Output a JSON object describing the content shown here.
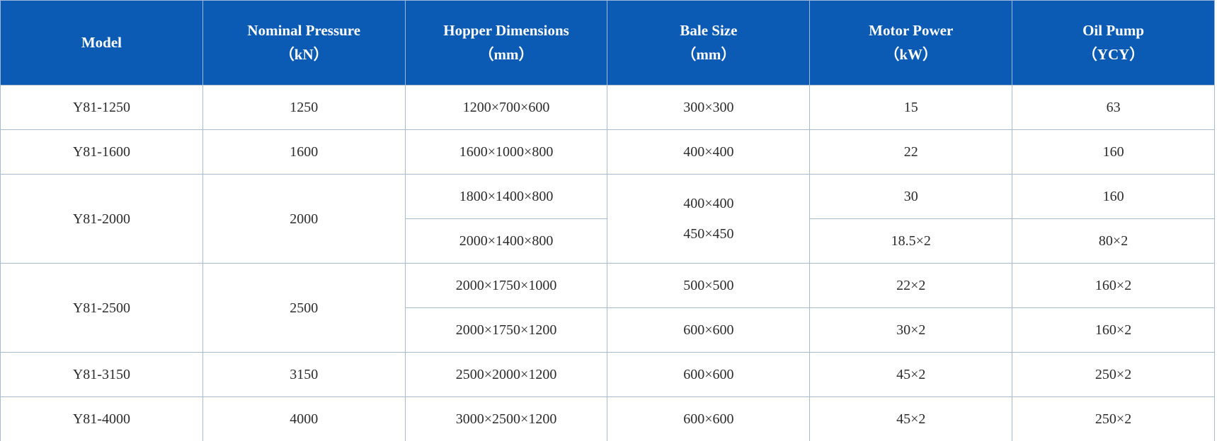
{
  "colors": {
    "header_bg": "#0b5ab3",
    "header_text": "#ffffff",
    "body_text": "#2b2b2b",
    "grid_border": "#a9bccd",
    "header_grid": "#9db8d8",
    "outer_border": "#b5cade"
  },
  "table": {
    "headers": [
      {
        "label": "Model",
        "unit": ""
      },
      {
        "label": "Nominal Pressure",
        "unit": "（kN）"
      },
      {
        "label": "Hopper Dimensions",
        "unit": "（mm）"
      },
      {
        "label": "Bale Size",
        "unit": "（mm）"
      },
      {
        "label": "Motor Power",
        "unit": "（kW）"
      },
      {
        "label": "Oil Pump",
        "unit": "（YCY）"
      }
    ],
    "rows": [
      {
        "model": "Y81-1250",
        "pressure": "1250",
        "hopper": "1200×700×600",
        "bale": "300×300",
        "motor": "15",
        "pump": "63"
      },
      {
        "model": "Y81-1600",
        "pressure": "1600",
        "hopper": "1600×1000×800",
        "bale": "400×400",
        "motor": "22",
        "pump": "160"
      },
      {
        "model": "Y81-2000",
        "pressure": "2000",
        "hopper": "1800×1400×800",
        "bale": "400×400\n450×450",
        "motor": "30",
        "pump": "160"
      },
      {
        "hopper": "2000×1400×800",
        "motor": "18.5×2",
        "pump": "80×2"
      },
      {
        "model": "Y81-2500",
        "pressure": "2500",
        "hopper": "2000×1750×1000",
        "bale": "500×500",
        "motor": "22×2",
        "pump": "160×2"
      },
      {
        "hopper": "2000×1750×1200",
        "bale": "600×600",
        "motor": "30×2",
        "pump": "160×2"
      },
      {
        "model": "Y81-3150",
        "pressure": "3150",
        "hopper": "2500×2000×1200",
        "bale": "600×600",
        "motor": "45×2",
        "pump": "250×2"
      },
      {
        "model": "Y81-4000",
        "pressure": "4000",
        "hopper": "3000×2500×1200",
        "bale": "600×600",
        "motor": "45×2",
        "pump": "250×2"
      }
    ]
  }
}
